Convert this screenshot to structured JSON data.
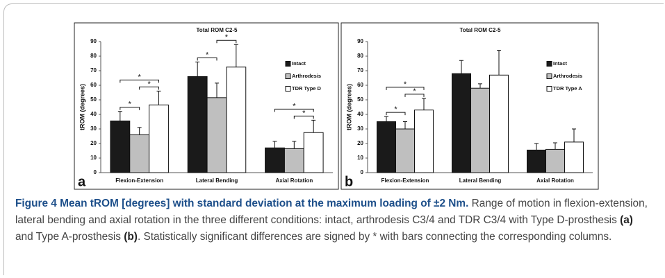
{
  "chart_data": [
    {
      "type": "bar",
      "panel": "a",
      "title": "Total ROM C2-5",
      "ylabel": "tROM (degrees)",
      "categories": [
        "Flexion-Extension",
        "Lateral Bending",
        "Axial Rotation"
      ],
      "series": [
        {
          "name": "Intact",
          "color": "#1a1a1a",
          "values": [
            35.5,
            66,
            17
          ],
          "errors": [
            6.5,
            10,
            4.5
          ]
        },
        {
          "name": "Arthrodesis",
          "color": "#bfbfbf",
          "values": [
            26,
            51.5,
            16.5
          ],
          "errors": [
            5,
            10,
            5
          ]
        },
        {
          "name": "TDR Type D",
          "color": "#ffffff",
          "values": [
            46.5,
            72.5,
            27.5
          ],
          "errors": [
            9.5,
            15.5,
            8.5
          ]
        }
      ],
      "ylim": [
        0,
        90
      ],
      "yticks": [
        0,
        10,
        20,
        30,
        40,
        50,
        60,
        70,
        80,
        90
      ],
      "legend": "right",
      "significance": [
        {
          "category": 0,
          "from": 0,
          "to": 1,
          "label": "*"
        },
        {
          "category": 0,
          "from": 1,
          "to": 2,
          "label": "*"
        },
        {
          "category": 0,
          "from": 0,
          "to": 2,
          "label": "*"
        },
        {
          "category": 1,
          "from": 0,
          "to": 1,
          "label": "*"
        },
        {
          "category": 1,
          "from": 1,
          "to": 2,
          "label": "*"
        },
        {
          "category": 2,
          "from": 1,
          "to": 2,
          "label": "*"
        },
        {
          "category": 2,
          "from": 0,
          "to": 2,
          "label": "*"
        }
      ]
    },
    {
      "type": "bar",
      "panel": "b",
      "title": "Total ROM C2-5",
      "ylabel": "tROM (degrees)",
      "categories": [
        "Flexion-Extension",
        "Lateral Bending",
        "Axial Rotation"
      ],
      "series": [
        {
          "name": "Intact",
          "color": "#1a1a1a",
          "values": [
            35,
            68,
            15.5
          ],
          "errors": [
            3.5,
            9,
            4.5
          ]
        },
        {
          "name": "Arthrodesis",
          "color": "#bfbfbf",
          "values": [
            30,
            58,
            16
          ],
          "errors": [
            5,
            3,
            4.5
          ]
        },
        {
          "name": "TDR Type A",
          "color": "#ffffff",
          "values": [
            43,
            67,
            21
          ],
          "errors": [
            8,
            17,
            9
          ]
        }
      ],
      "ylim": [
        0,
        90
      ],
      "yticks": [
        0,
        10,
        20,
        30,
        40,
        50,
        60,
        70,
        80,
        90
      ],
      "legend": "right",
      "significance": [
        {
          "category": 0,
          "from": 0,
          "to": 1,
          "label": "*"
        },
        {
          "category": 0,
          "from": 1,
          "to": 2,
          "label": "*"
        },
        {
          "category": 0,
          "from": 0,
          "to": 2,
          "label": "*"
        }
      ]
    }
  ],
  "caption": {
    "title": "Figure 4 Mean tROM [degrees] with standard deviation at the maximum loading of ±2 Nm.",
    "text": [
      " Range of motion in flexion-extension, lateral bending and axial rotation in the three different conditions: intact, arthrodesis C3/4 and TDR C3/4 with Type D-prosthesis ",
      "(a)",
      " and Type A-prosthesis ",
      "(b)",
      ". Statistically significant differences are signed by * with bars connecting the corresponding columns."
    ]
  }
}
